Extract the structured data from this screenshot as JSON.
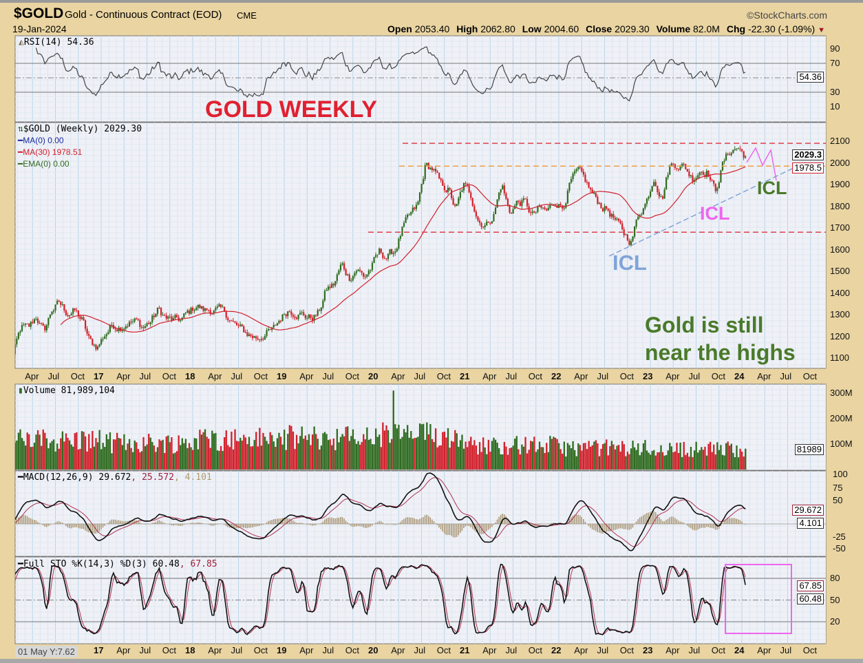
{
  "header": {
    "symbol": "$GOLD",
    "name": "Gold - Continuous Contract (EOD)",
    "exchange": "CME",
    "date": "19-Jan-2024",
    "copyright": "©StockCharts.com",
    "ohlc": {
      "open_label": "Open",
      "open": "2053.40",
      "high_label": "High",
      "high": "2062.80",
      "low_label": "Low",
      "low": "2004.60",
      "close_label": "Close",
      "close": "2029.30",
      "volume_label": "Volume",
      "volume": "82.0M",
      "chg_label": "Chg",
      "chg": "-22.30 (-1.09%)",
      "chg_icon": "triangle-down-icon"
    }
  },
  "panels": {
    "rsi": {
      "legend": "RSI(14) 54.36",
      "ticks": [
        "90",
        "70",
        "30",
        "10"
      ],
      "tag": "54.36"
    },
    "price": {
      "legend": "$GOLD (Weekly) 2029.30",
      "ma0": "MA(0) 0.00",
      "ma30": "MA(30) 1978.51",
      "ema0": "EMA(0) 0.00",
      "ticks": [
        "2100",
        "2000",
        "1900",
        "1800",
        "1700",
        "1600",
        "1500",
        "1400",
        "1300",
        "1200",
        "1100"
      ],
      "tag_close": "2029.3",
      "tag_ma": "1978.5"
    },
    "volume": {
      "legend": "Volume 81,989,104",
      "ticks": [
        "300M",
        "200M",
        "100M"
      ],
      "tag": "81989"
    },
    "macd": {
      "legend_a": "MACD(12,26,9) 29.672",
      "legend_b": ", 25.572",
      "legend_c": ", 4.101",
      "ticks": [
        "100",
        "75",
        "50",
        "-25",
        "-50"
      ],
      "tag_macd": "29.672",
      "tag_hist": "4.101"
    },
    "sto": {
      "legend_a": "Full STO %K(14,3) %D(3) 60.48",
      "legend_b": ", 67.85",
      "ticks": [
        "80",
        "50",
        "20"
      ],
      "tag_d": "67.85",
      "tag_k": "60.48"
    }
  },
  "x_axis": [
    "Apr",
    "Jul",
    "Oct",
    "17",
    "Apr",
    "Jul",
    "Oct",
    "18",
    "Apr",
    "Jul",
    "Oct",
    "19",
    "Apr",
    "Jul",
    "Oct",
    "20",
    "Apr",
    "Jul",
    "Oct",
    "21",
    "Apr",
    "Jul",
    "Oct",
    "22",
    "Apr",
    "Jul",
    "Oct",
    "23",
    "Apr",
    "Jul",
    "Oct",
    "24",
    "Apr",
    "Jul",
    "Oct"
  ],
  "cursor_readout": "01 May Y:7.62",
  "annotations": {
    "title": "GOLD WEEKLY",
    "icl_blue": "ICL",
    "icl_magenta": "ICL",
    "icl_green": "ICL",
    "note_line1": "Gold is still",
    "note_line2": "near the highs",
    "resistance_high": 2090,
    "resistance_mid": 1985,
    "support": 1680
  },
  "colors": {
    "up": "#2e6b1f",
    "down": "#d1202b",
    "ma30": "#d1202b",
    "resistance": "#e0404a",
    "orange_line": "#f0a040",
    "trend_blue": "#7fa4d8",
    "magenta": "#ee66ee",
    "annotation_red": "#e02030",
    "annotation_green": "#4a7a2a"
  },
  "chart_data": {
    "type": "candlestick",
    "frequency": "weekly",
    "scale": "linear",
    "grid": true,
    "monthly_close_start": "2016-01",
    "monthly_close": [
      1118,
      1238,
      1234,
      1293,
      1217,
      1322,
      1351,
      1309,
      1316,
      1273,
      1173,
      1152,
      1211,
      1252,
      1249,
      1268,
      1268,
      1242,
      1269,
      1322,
      1283,
      1271,
      1275,
      1309,
      1345,
      1318,
      1325,
      1316,
      1298,
      1253,
      1224,
      1206,
      1192,
      1215,
      1223,
      1282,
      1325,
      1316,
      1298,
      1285,
      1305,
      1413,
      1437,
      1529,
      1472,
      1514,
      1473,
      1523,
      1587,
      1566,
      1596,
      1694,
      1751,
      1800,
      1986,
      1973,
      1895,
      1879,
      1780,
      1895,
      1848,
      1734,
      1715,
      1768,
      1906,
      1771,
      1817,
      1818,
      1757,
      1784,
      1774,
      1829,
      1796,
      1909,
      1954,
      1911,
      1848,
      1807,
      1782,
      1726,
      1672,
      1640,
      1768,
      1826,
      1945,
      1836,
      1986,
      1999,
      1982,
      1929,
      1970,
      1966,
      1866,
      1996,
      2057,
      2071,
      2029
    ],
    "yearly_avg_volume_millions": {
      "2016": 115,
      "2017": 105,
      "2018": 120,
      "2019": 125,
      "2020": 135,
      "2021": 95,
      "2022": 85,
      "2023": 80,
      "2024": 82
    },
    "volume_peak": {
      "date": "2020-03",
      "millions": 310
    },
    "last": {
      "close": 2029.3,
      "ma30": 1978.51,
      "rsi": 54.36,
      "macd": 29.672,
      "signal": 25.572,
      "hist": 4.101,
      "k": 60.48,
      "d": 67.85,
      "volume": 81989104
    },
    "ylim_price": [
      1080,
      2150
    ],
    "rsi_levels": [
      30,
      70
    ],
    "sto_levels": [
      20,
      80
    ]
  }
}
